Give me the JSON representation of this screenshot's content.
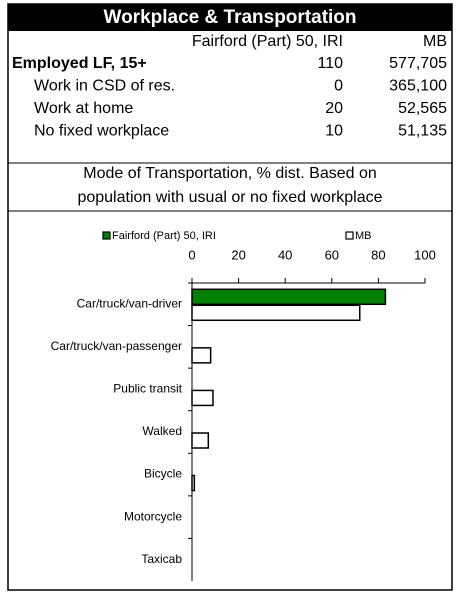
{
  "title": "Workplace & Transportation",
  "table": {
    "header": [
      "Fairford (Part) 50, IRI",
      "MB"
    ],
    "rows": [
      [
        "Employed LF, 15+",
        "110",
        "577,705"
      ],
      [
        "Work in CSD of res.",
        "0",
        "365,100"
      ],
      [
        "Work at home",
        "20",
        "52,565"
      ],
      [
        "No fixed workplace",
        "10",
        "51,135"
      ]
    ]
  },
  "chart_data": {
    "type": "hbar",
    "title": "Mode of Transportation, % dist. Based on population with usual or no fixed workplace",
    "categories": [
      "Car/truck/van-driver",
      "Car/truck/van-passenger",
      "Public transit",
      "Walked",
      "Bicycle",
      "Motorcycle",
      "Taxicab"
    ],
    "series": [
      {
        "name": "Fairford (Part) 50, IRI",
        "color": "#008000",
        "values": [
          83,
          0,
          0,
          0,
          0,
          0,
          0
        ]
      },
      {
        "name": "MB",
        "color": "#ffffff",
        "values": [
          72,
          8,
          9,
          7,
          1,
          0,
          0
        ]
      }
    ],
    "xlim": [
      0,
      100
    ],
    "xticks": [
      0,
      20,
      40,
      60,
      80,
      100
    ],
    "legend": "top"
  }
}
